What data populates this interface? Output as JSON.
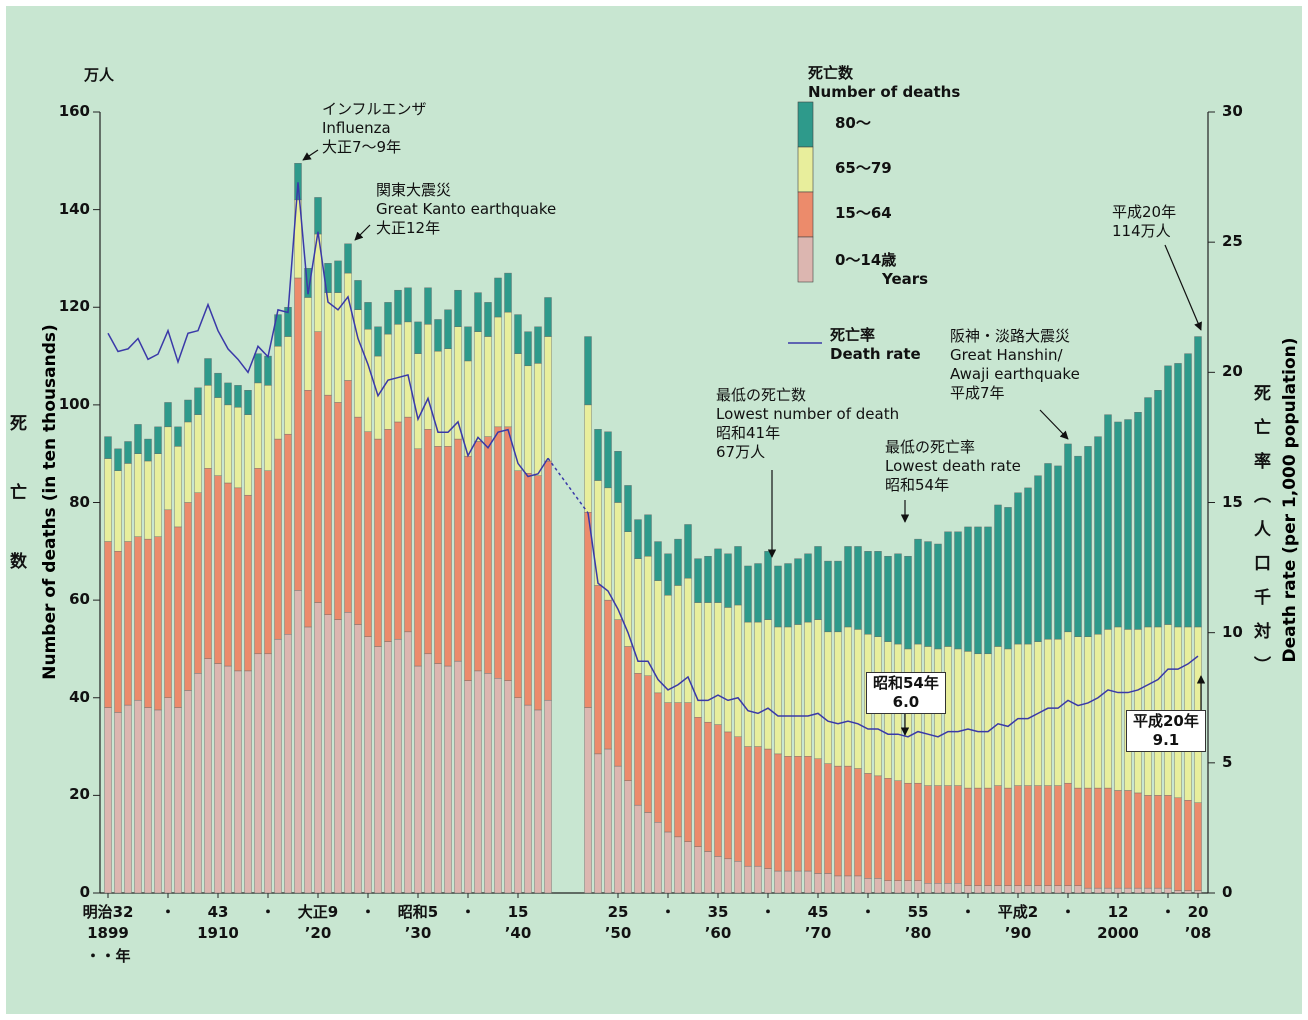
{
  "chart_data": {
    "type": "stacked_bar_line",
    "unit_left": "万人",
    "ylabel": "Number of deaths (in ten thousands)",
    "ylabel_ja": "死亡数",
    "y2label": "Death rate (per 1,000 population)",
    "y2label_ja": "死亡率（人口千対）",
    "legend_title": "死亡数\nNumber of deaths",
    "legend_note": "Years",
    "x_unit": "・・年",
    "ylim": [
      0,
      160
    ],
    "yticks": [
      0,
      20,
      40,
      60,
      80,
      100,
      120,
      140,
      160
    ],
    "y2lim": [
      0,
      30
    ],
    "y2ticks": [
      0,
      5,
      10,
      15,
      20,
      25,
      30
    ],
    "xlim": [
      1898.5,
      2008.5
    ],
    "xticks": [
      {
        "value": 1899,
        "label": "明治32\n1899"
      },
      {
        "value": 1905,
        "label": "・"
      },
      {
        "value": 1910,
        "label": "43\n1910"
      },
      {
        "value": 1915,
        "label": "・"
      },
      {
        "value": 1920,
        "label": "大正9\n’20"
      },
      {
        "value": 1925,
        "label": "・"
      },
      {
        "value": 1930,
        "label": "昭和5\n’30"
      },
      {
        "value": 1935,
        "label": "・"
      },
      {
        "value": 1940,
        "label": "15\n’40"
      },
      {
        "value": 1950,
        "label": "25\n’50"
      },
      {
        "value": 1955,
        "label": "・"
      },
      {
        "value": 1960,
        "label": "35\n’60"
      },
      {
        "value": 1965,
        "label": "・"
      },
      {
        "value": 1970,
        "label": "45\n’70"
      },
      {
        "value": 1975,
        "label": "・"
      },
      {
        "value": 1980,
        "label": "55\n’80"
      },
      {
        "value": 1985,
        "label": "・"
      },
      {
        "value": 1990,
        "label": "平成2\n’90"
      },
      {
        "value": 1995,
        "label": "・"
      },
      {
        "value": 2000,
        "label": "12\n2000"
      },
      {
        "value": 2005,
        "label": "・"
      },
      {
        "value": 2008,
        "label": "20\n’08"
      }
    ],
    "x": [
      1899,
      1900,
      1901,
      1902,
      1903,
      1904,
      1905,
      1906,
      1907,
      1908,
      1909,
      1910,
      1911,
      1912,
      1913,
      1914,
      1915,
      1916,
      1917,
      1918,
      1919,
      1920,
      1921,
      1922,
      1923,
      1924,
      1925,
      1926,
      1927,
      1928,
      1929,
      1930,
      1931,
      1932,
      1933,
      1934,
      1935,
      1936,
      1937,
      1938,
      1939,
      1940,
      1941,
      1942,
      1943,
      1947,
      1948,
      1949,
      1950,
      1951,
      1952,
      1953,
      1954,
      1955,
      1956,
      1957,
      1958,
      1959,
      1960,
      1961,
      1962,
      1963,
      1964,
      1965,
      1966,
      1967,
      1968,
      1969,
      1970,
      1971,
      1972,
      1973,
      1974,
      1975,
      1976,
      1977,
      1978,
      1979,
      1980,
      1981,
      1982,
      1983,
      1984,
      1985,
      1986,
      1987,
      1988,
      1989,
      1990,
      1991,
      1992,
      1993,
      1994,
      1995,
      1996,
      1997,
      1998,
      1999,
      2000,
      2001,
      2002,
      2003,
      2004,
      2005,
      2006,
      2007,
      2008
    ],
    "series": [
      {
        "name": "0～14歳",
        "color": "#dcb6b0",
        "values": [
          38,
          37,
          38.5,
          39.5,
          38,
          37.5,
          40,
          38,
          41.5,
          45,
          48,
          47,
          46.5,
          45.5,
          45.5,
          49,
          49,
          52,
          53,
          62,
          54.5,
          59.5,
          57,
          56,
          57.5,
          55,
          52.5,
          50.5,
          51.5,
          52,
          53.5,
          46.5,
          49,
          47,
          46.5,
          47.5,
          43.5,
          45.5,
          45,
          44,
          43.5,
          40,
          38.5,
          37.5,
          39.5,
          38,
          28.5,
          29.5,
          26,
          23,
          18,
          16.5,
          14.5,
          12.5,
          11.5,
          10.5,
          9.5,
          8.5,
          7.5,
          7,
          6.5,
          5.5,
          5.5,
          5,
          4.5,
          4.5,
          4.5,
          4.5,
          4,
          4,
          3.5,
          3.5,
          3.5,
          3,
          3,
          2.5,
          2.5,
          2.5,
          2.5,
          2,
          2,
          2,
          2,
          1.5,
          1.5,
          1.5,
          1.5,
          1.5,
          1.5,
          1.5,
          1.5,
          1.5,
          1.5,
          1.5,
          1.5,
          1,
          1,
          1,
          1,
          1,
          1,
          1,
          1,
          1,
          0.5,
          0.5,
          0.5
        ]
      },
      {
        "name": "15～64",
        "color": "#ec8b6b",
        "values": [
          34,
          33,
          33.5,
          33.5,
          34.5,
          35.5,
          38.5,
          37,
          38.5,
          37,
          39,
          38.5,
          37.5,
          37.5,
          36,
          38,
          37.5,
          41,
          41,
          64,
          48.5,
          55.5,
          45,
          44.5,
          47.5,
          42.5,
          42,
          42.5,
          43.5,
          44.5,
          44,
          44.5,
          46,
          44.5,
          45,
          45.5,
          46,
          47,
          48.5,
          51.5,
          52,
          46.5,
          47.5,
          48,
          49,
          40,
          34.5,
          30.5,
          30,
          27.5,
          27,
          28,
          26.5,
          26.5,
          27.5,
          28.5,
          26.5,
          26.5,
          27,
          26,
          25.5,
          24.5,
          24.5,
          24.5,
          24,
          23.5,
          23.5,
          23.5,
          23.5,
          22.5,
          22.5,
          22.5,
          22,
          21.5,
          21,
          21,
          20.5,
          20,
          20,
          20,
          20,
          20,
          20,
          20,
          20,
          20,
          20.5,
          20,
          20.5,
          20.5,
          20.5,
          20.5,
          20.5,
          21,
          20,
          20.5,
          20.5,
          20.5,
          20,
          20,
          19.5,
          19,
          19,
          19,
          19,
          18.5,
          18
        ]
      },
      {
        "name": "65～79",
        "color": "#e8ee9c",
        "values": [
          17,
          16.5,
          16,
          17,
          16,
          17,
          17,
          16.5,
          16.5,
          16,
          17,
          16,
          16,
          16.5,
          16.5,
          17.5,
          17.5,
          19,
          20,
          16,
          19,
          20,
          21,
          22.5,
          22,
          22,
          21,
          17,
          19.5,
          20,
          19.5,
          19.5,
          21.5,
          19.5,
          20,
          23,
          19.5,
          22.5,
          20.5,
          22.5,
          23.5,
          24,
          22,
          23,
          25.5,
          22,
          21.5,
          23,
          24,
          23.5,
          23.5,
          24.5,
          23,
          22,
          24,
          25.5,
          23.5,
          24.5,
          25,
          25.5,
          27,
          25.5,
          25.5,
          26.5,
          26,
          26.5,
          27,
          27.5,
          28.5,
          27,
          27.5,
          28.5,
          28.5,
          28.5,
          28.5,
          28,
          28,
          27.5,
          28.5,
          28.5,
          28,
          28.5,
          28,
          28,
          27.5,
          27.5,
          28.5,
          28.5,
          29,
          29,
          29.5,
          30,
          30,
          31,
          31,
          31,
          31.5,
          32.5,
          33.5,
          33,
          33.5,
          34.5,
          34.5,
          35,
          35,
          35.5,
          36
        ]
      },
      {
        "name": "80～",
        "color": "#2e9a8b",
        "values": [
          4.5,
          4.5,
          4.5,
          6,
          4.5,
          5.5,
          5,
          4,
          4.5,
          5.5,
          5.5,
          5,
          4.5,
          4.5,
          5,
          6,
          6,
          6.5,
          6,
          7.5,
          6,
          7.5,
          6,
          6.5,
          6,
          6,
          5.5,
          6,
          6.5,
          7,
          7,
          6.5,
          7.5,
          6.5,
          8,
          7.5,
          7,
          8,
          7,
          8,
          8,
          8,
          7,
          7.5,
          8,
          14,
          10.5,
          11.5,
          10.5,
          9.5,
          8,
          8.5,
          8,
          8.5,
          9.5,
          11,
          9,
          9.5,
          11,
          11,
          12,
          11.5,
          12,
          14,
          12.5,
          13,
          13.5,
          14,
          15,
          14.5,
          14.5,
          16.5,
          17,
          17,
          17.5,
          17.5,
          18.5,
          19,
          21.5,
          21.5,
          21.5,
          23.5,
          24,
          25.5,
          26,
          26,
          29,
          29,
          31,
          32,
          34,
          36,
          35.5,
          38.5,
          37,
          39,
          40.5,
          44,
          42,
          43,
          44.5,
          47,
          48.5,
          53,
          54,
          56,
          59.5
        ]
      },
      {
        "name": "死亡率\nDeath rate",
        "color": "#3a39a8",
        "axis": "y2",
        "type": "line",
        "values": [
          21.5,
          20.8,
          20.9,
          21.3,
          20.5,
          20.7,
          21.6,
          20.4,
          21.5,
          21.6,
          22.6,
          21.6,
          20.9,
          20.5,
          20,
          21,
          20.6,
          22.4,
          22.3,
          27.3,
          23,
          25.4,
          22.7,
          22.4,
          22.9,
          21.3,
          20.3,
          19.1,
          19.7,
          19.8,
          19.9,
          18.2,
          19,
          17.7,
          17.7,
          18.1,
          16.8,
          17.5,
          17.1,
          17.7,
          17.8,
          16.5,
          16,
          16.1,
          16.7,
          14.6,
          11.9,
          11.6,
          10.9,
          10,
          8.9,
          8.9,
          8.2,
          7.8,
          8,
          8.3,
          7.4,
          7.4,
          7.6,
          7.4,
          7.5,
          7,
          6.9,
          7.1,
          6.8,
          6.8,
          6.8,
          6.8,
          6.9,
          6.6,
          6.5,
          6.6,
          6.5,
          6.3,
          6.3,
          6.1,
          6.1,
          6,
          6.2,
          6.1,
          6,
          6.2,
          6.2,
          6.3,
          6.2,
          6.2,
          6.5,
          6.4,
          6.7,
          6.7,
          6.9,
          7.1,
          7.1,
          7.4,
          7.2,
          7.3,
          7.5,
          7.8,
          7.7,
          7.7,
          7.8,
          8,
          8.2,
          8.6,
          8.6,
          8.8,
          9.1
        ]
      }
    ],
    "annotations": [
      "インフルエンザ\nInfluenza\n大正7～9年",
      "関東大震災\nGreat Kanto earthquake\n大正12年",
      "平成20年\n114万人",
      "阪神・淡路大震災\nGreat Hanshin/\nAwaji earthquake\n平成7年",
      "最低の死亡数\nLowest number of death\n昭和41年\n67万人",
      "最低の死亡率\nLowest death rate\n昭和54年",
      "昭和54年\n6.0",
      "平成20年\n9.1"
    ],
    "background": "#c8e6d1"
  }
}
